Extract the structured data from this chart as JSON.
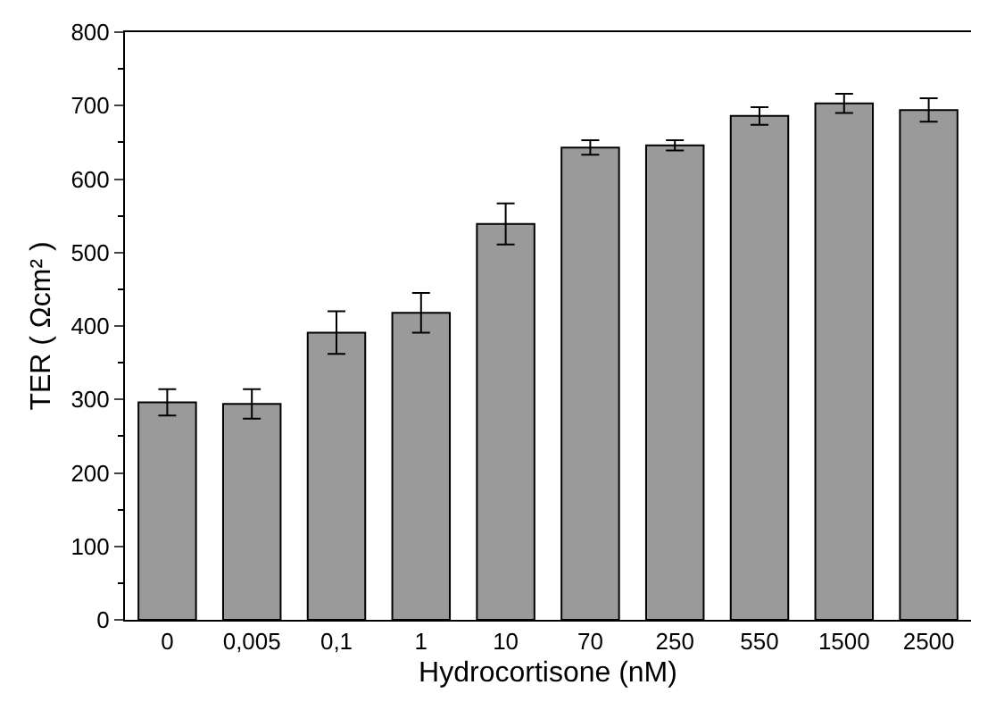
{
  "chart_data": {
    "type": "bar",
    "xlabel": "Hydrocortisone (nM)",
    "ylabel": "TER ( Ωcm² )",
    "categories": [
      "0",
      "0,005",
      "0,1",
      "1",
      "10",
      "70",
      "250",
      "550",
      "1500",
      "2500"
    ],
    "values": [
      296,
      294,
      391,
      418,
      539,
      643,
      646,
      686,
      703,
      694
    ],
    "errors": [
      18,
      20,
      29,
      27,
      28,
      10,
      7,
      12,
      13,
      16
    ],
    "color": "#9a9a9a",
    "ylim": [
      0,
      800
    ],
    "yticks": [
      0,
      100,
      200,
      300,
      400,
      500,
      600,
      700,
      800
    ],
    "grid": false
  }
}
